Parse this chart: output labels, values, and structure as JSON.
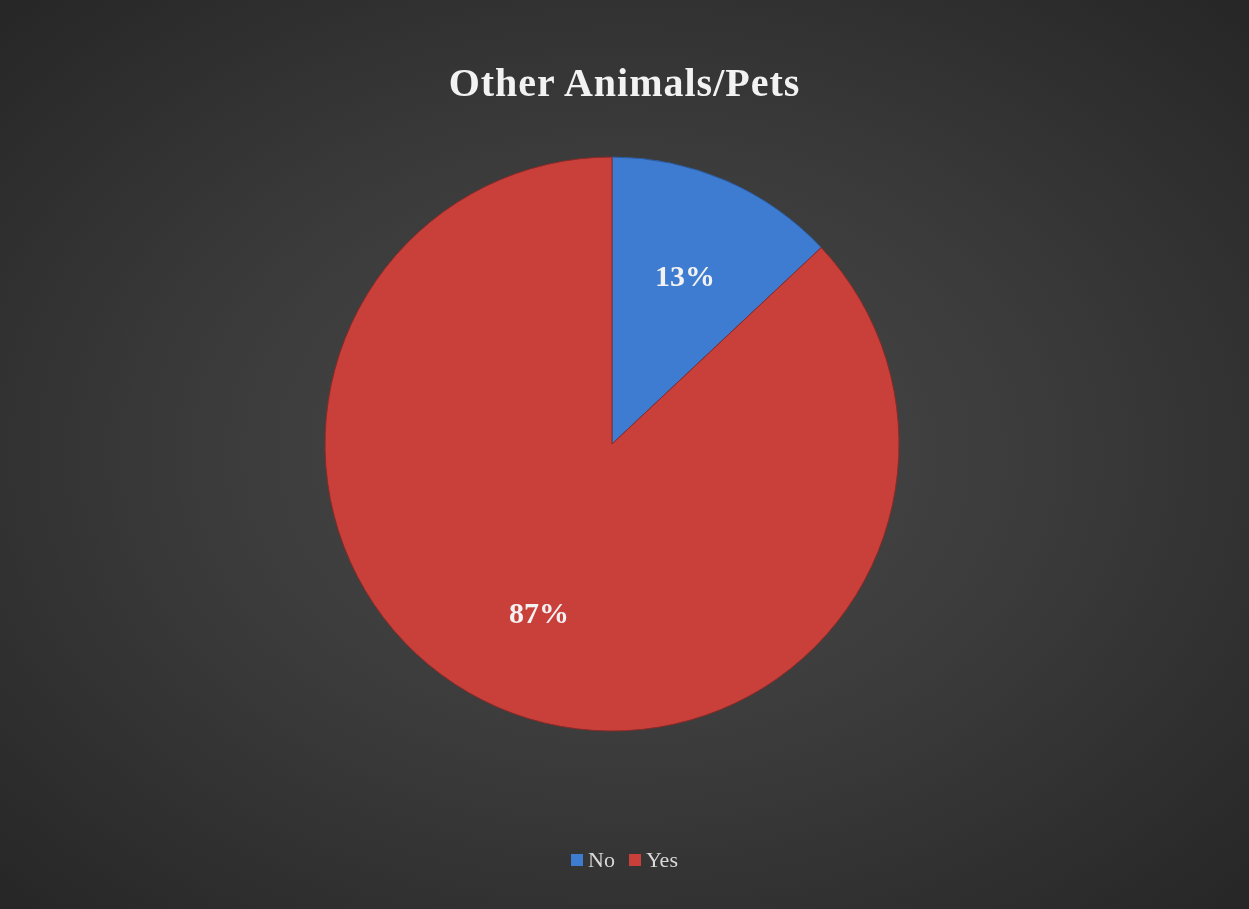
{
  "chart_data": {
    "type": "pie",
    "title": "Other Animals/Pets",
    "categories": [
      "No",
      "Yes"
    ],
    "values": [
      13,
      87
    ],
    "colors": [
      "#3d7cd0",
      "#c9403b"
    ],
    "value_labels": [
      "13%",
      "87%"
    ],
    "legend": "bottom"
  }
}
